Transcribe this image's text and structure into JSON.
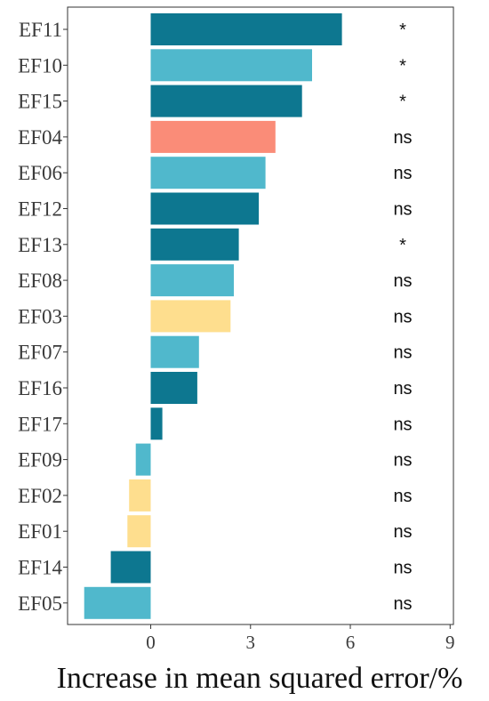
{
  "chart_data": {
    "type": "bar",
    "orientation": "horizontal",
    "categories": [
      "EF11",
      "EF10",
      "EF15",
      "EF04",
      "EF06",
      "EF12",
      "EF13",
      "EF08",
      "EF03",
      "EF07",
      "EF16",
      "EF17",
      "EF09",
      "EF02",
      "EF01",
      "EF14",
      "EF05"
    ],
    "values": [
      5.75,
      4.85,
      4.55,
      3.75,
      3.45,
      3.25,
      2.65,
      2.5,
      2.4,
      1.45,
      1.4,
      0.35,
      -0.45,
      -0.65,
      -0.7,
      -1.2,
      -2.0
    ],
    "colors": [
      "#0d7790",
      "#50b8cc",
      "#0d7790",
      "#fa8c78",
      "#50b8cc",
      "#0d7790",
      "#0d7790",
      "#50b8cc",
      "#fede8e",
      "#50b8cc",
      "#0d7790",
      "#0d7790",
      "#50b8cc",
      "#fede8e",
      "#fede8e",
      "#0d7790",
      "#50b8cc"
    ],
    "significance": [
      "*",
      "*",
      "*",
      "ns",
      "ns",
      "ns",
      "*",
      "ns",
      "ns",
      "ns",
      "ns",
      "ns",
      "ns",
      "ns",
      "ns",
      "ns",
      "ns"
    ],
    "xlabel": "Increase in mean squared error/%",
    "ylabel": "",
    "xlim": [
      -2.5,
      9.1
    ],
    "xticks": [
      0,
      3,
      6,
      9
    ],
    "grid": false
  }
}
